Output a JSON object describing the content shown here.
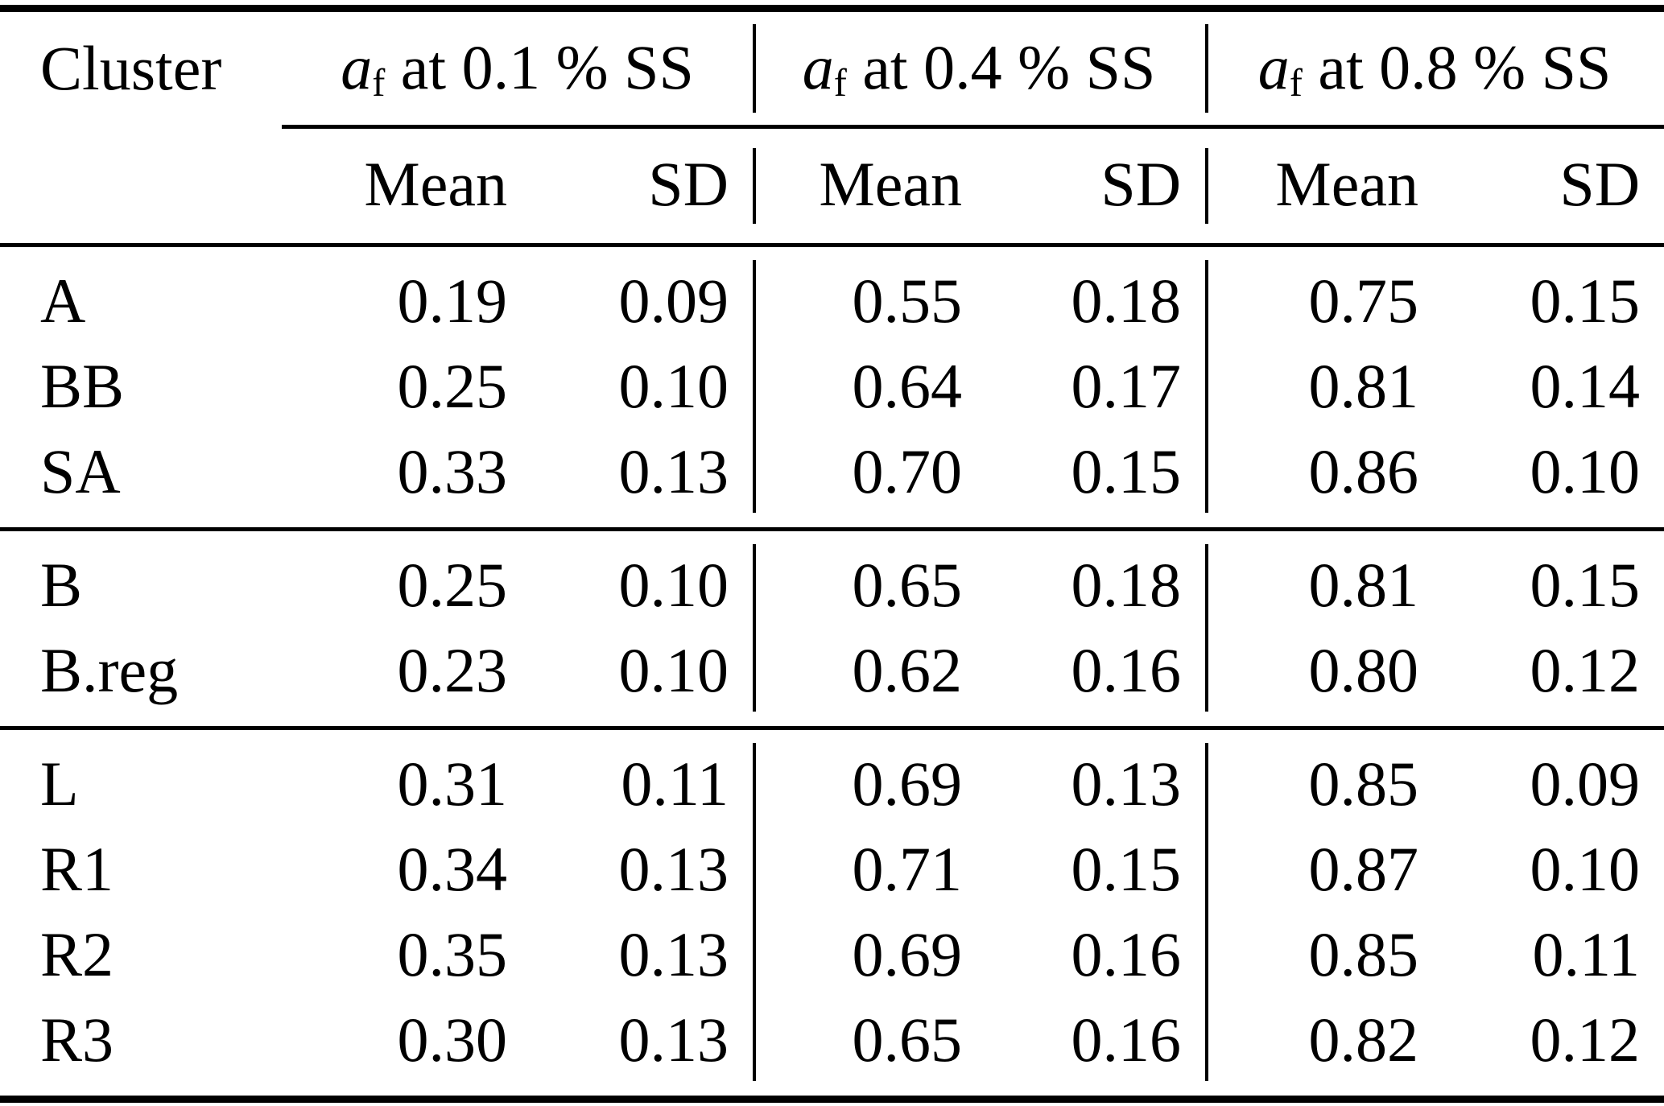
{
  "page": {
    "background_color": "#ffffff",
    "text_color": "#000000",
    "rule_color": "#000000"
  },
  "table": {
    "cluster_header": "Cluster",
    "column_groups": [
      {
        "symbol": "a",
        "subscript": "f",
        "rest": " at 0.1 % SS"
      },
      {
        "symbol": "a",
        "subscript": "f",
        "rest": " at 0.4 % SS"
      },
      {
        "symbol": "a",
        "subscript": "f",
        "rest": " at 0.8 % SS"
      }
    ],
    "sub_columns": {
      "mean": "Mean",
      "sd": "SD"
    },
    "row_groups": [
      {
        "rows": [
          {
            "cluster": "A",
            "cells": [
              "0.19",
              "0.09",
              "0.55",
              "0.18",
              "0.75",
              "0.15"
            ]
          },
          {
            "cluster": "BB",
            "cells": [
              "0.25",
              "0.10",
              "0.64",
              "0.17",
              "0.81",
              "0.14"
            ]
          },
          {
            "cluster": "SA",
            "cells": [
              "0.33",
              "0.13",
              "0.70",
              "0.15",
              "0.86",
              "0.10"
            ]
          }
        ]
      },
      {
        "rows": [
          {
            "cluster": "B",
            "cells": [
              "0.25",
              "0.10",
              "0.65",
              "0.18",
              "0.81",
              "0.15"
            ]
          },
          {
            "cluster": "B.reg",
            "cells": [
              "0.23",
              "0.10",
              "0.62",
              "0.16",
              "0.80",
              "0.12"
            ]
          }
        ]
      },
      {
        "rows": [
          {
            "cluster": "L",
            "cells": [
              "0.31",
              "0.11",
              "0.69",
              "0.13",
              "0.85",
              "0.09"
            ]
          },
          {
            "cluster": "R1",
            "cells": [
              "0.34",
              "0.13",
              "0.71",
              "0.15",
              "0.87",
              "0.10"
            ]
          },
          {
            "cluster": "R2",
            "cells": [
              "0.35",
              "0.13",
              "0.69",
              "0.16",
              "0.85",
              "0.11"
            ]
          },
          {
            "cluster": "R3",
            "cells": [
              "0.30",
              "0.13",
              "0.65",
              "0.16",
              "0.82",
              "0.12"
            ]
          }
        ]
      }
    ]
  },
  "chart_data": {
    "type": "table",
    "columns": [
      "Cluster",
      "a_f at 0.1 % SS Mean",
      "a_f at 0.1 % SS SD",
      "a_f at 0.4 % SS Mean",
      "a_f at 0.4 % SS SD",
      "a_f at 0.8 % SS Mean",
      "a_f at 0.8 % SS SD"
    ],
    "rows": [
      [
        "A",
        0.19,
        0.09,
        0.55,
        0.18,
        0.75,
        0.15
      ],
      [
        "BB",
        0.25,
        0.1,
        0.64,
        0.17,
        0.81,
        0.14
      ],
      [
        "SA",
        0.33,
        0.13,
        0.7,
        0.15,
        0.86,
        0.1
      ],
      [
        "B",
        0.25,
        0.1,
        0.65,
        0.18,
        0.81,
        0.15
      ],
      [
        "B.reg",
        0.23,
        0.1,
        0.62,
        0.16,
        0.8,
        0.12
      ],
      [
        "L",
        0.31,
        0.11,
        0.69,
        0.13,
        0.85,
        0.09
      ],
      [
        "R1",
        0.34,
        0.13,
        0.71,
        0.15,
        0.87,
        0.1
      ],
      [
        "R2",
        0.35,
        0.13,
        0.69,
        0.16,
        0.85,
        0.11
      ],
      [
        "R3",
        0.3,
        0.13,
        0.65,
        0.16,
        0.82,
        0.12
      ]
    ],
    "row_group_breaks_after": [
      "SA",
      "B.reg"
    ],
    "grid": "horizontal rules between groups, vertical rules between SS groups",
    "legend_position": "none"
  }
}
